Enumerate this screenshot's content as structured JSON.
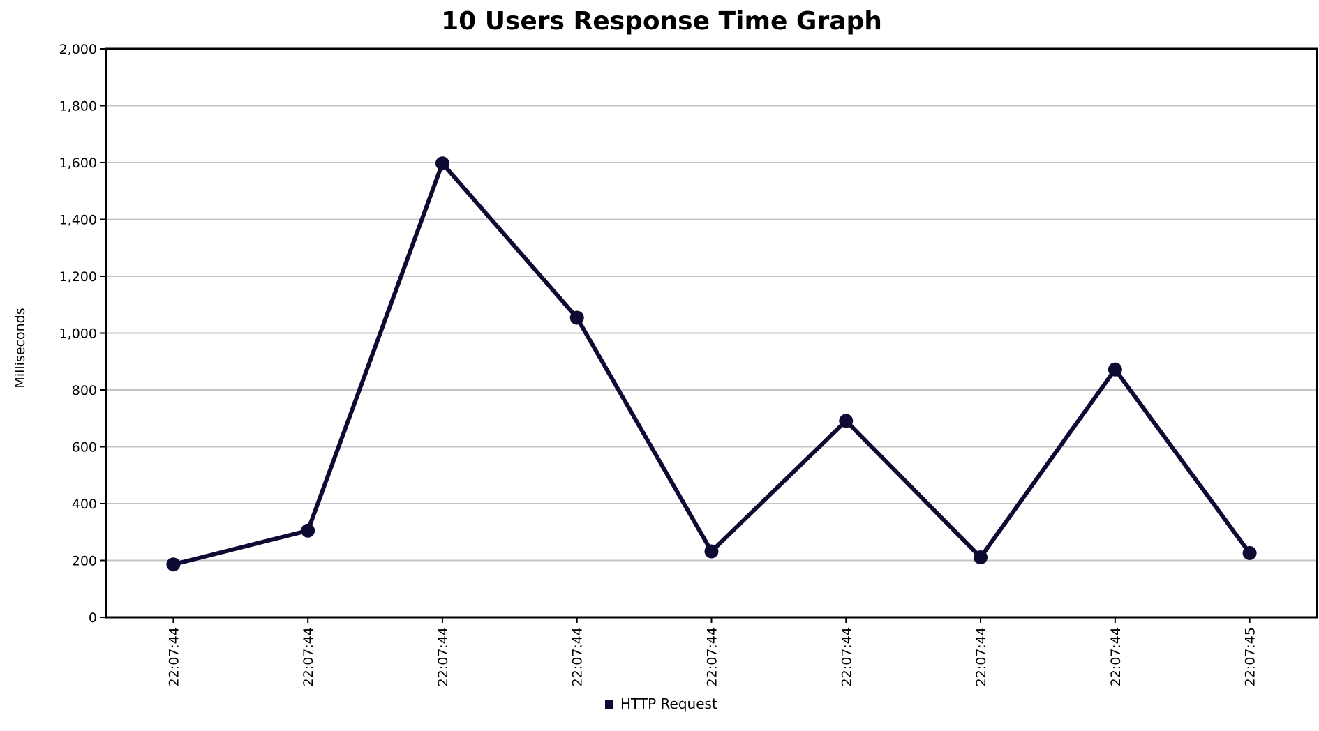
{
  "chart_data": {
    "type": "line",
    "title": "10 Users Response Time Graph",
    "xlabel": "",
    "ylabel": "Milliseconds",
    "categories": [
      "22:07:44",
      "22:07:44",
      "22:07:44",
      "22:07:44",
      "22:07:44",
      "22:07:44",
      "22:07:44",
      "22:07:44",
      "22:07:45"
    ],
    "series": [
      {
        "name": "HTTP Request",
        "values": [
          186,
          305,
          1597,
          1054,
          232,
          691,
          211,
          872,
          226
        ],
        "color": "#0d0b33"
      }
    ],
    "ylim": [
      0,
      2000
    ],
    "yticks": [
      0,
      200,
      400,
      600,
      800,
      1000,
      1200,
      1400,
      1600,
      1800,
      2000
    ],
    "yticklabels": [
      "0",
      "200",
      "400",
      "600",
      "800",
      "1,000",
      "1,200",
      "1,400",
      "1,600",
      "1,800",
      "2,000"
    ],
    "grid": true,
    "legend_position": "bottom-center"
  }
}
